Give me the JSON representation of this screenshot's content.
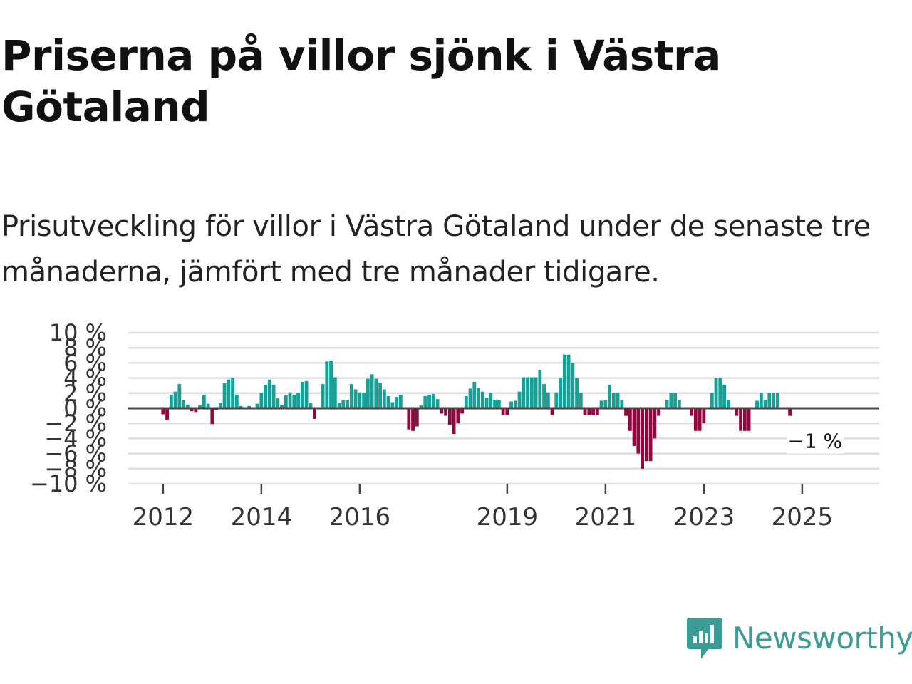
{
  "title": "Priserna på villor sjönk i Västra Götaland",
  "subtitle": "Prisutveckling för villor i Västra Götaland under de senaste tre månaderna, jämfört med tre månader tidigare.",
  "brand": {
    "name": "Newsworthy",
    "color": "#3a9c94"
  },
  "colors": {
    "positive": "#16a096",
    "negative": "#950641",
    "grid": "#dddddd",
    "zero": "#444444"
  },
  "chart_data": {
    "type": "bar",
    "title": "",
    "xlabel": "",
    "ylabel": "",
    "ylim": [
      -10,
      10
    ],
    "y_ticks": [
      10,
      8,
      6,
      4,
      2,
      0,
      -2,
      -4,
      -6,
      -8,
      -10
    ],
    "y_tick_labels": [
      "10 %",
      "8 %",
      "6 %",
      "4 %",
      "2 %",
      "0 %",
      "−2 %",
      "−4 %",
      "−6 %",
      "−8 %",
      "−10 %"
    ],
    "start": "2012-01",
    "x_tick_labels": [
      "2012",
      "2014",
      "2016",
      "2019",
      "2021",
      "2023",
      "2025"
    ],
    "x_tick_dates": [
      "2012-01",
      "2014-01",
      "2016-01",
      "2019-01",
      "2021-01",
      "2023-01",
      "2025-01"
    ],
    "last_label": "−1 %",
    "values": [
      -0.8,
      -1.5,
      1.8,
      2.2,
      3.2,
      1.1,
      0.5,
      -0.4,
      -0.5,
      0.4,
      1.8,
      0.6,
      -2.1,
      -0.2,
      0.7,
      3.3,
      3.8,
      4.0,
      1.8,
      0.3,
      0.1,
      0.3,
      0.1,
      0.6,
      2.0,
      3.1,
      3.8,
      3.1,
      1.3,
      0.4,
      1.7,
      2.1,
      1.8,
      2.0,
      3.5,
      3.6,
      0.7,
      -1.4,
      0.1,
      3.2,
      6.2,
      6.3,
      4.1,
      0.7,
      1.1,
      1.1,
      3.2,
      2.5,
      2.1,
      2.0,
      3.9,
      4.5,
      3.9,
      3.4,
      2.5,
      1.6,
      0.8,
      1.5,
      1.8,
      0.1,
      -2.8,
      -3.0,
      -2.4,
      0.4,
      1.6,
      1.8,
      1.9,
      1.2,
      -0.7,
      -1.0,
      -2.2,
      -3.4,
      -2.0,
      -0.7,
      1.6,
      2.6,
      3.5,
      2.7,
      2.2,
      1.4,
      2.0,
      1.1,
      1.1,
      -0.9,
      -0.9,
      0.9,
      1.0,
      2.2,
      4.1,
      4.1,
      4.1,
      4.1,
      5.1,
      3.2,
      2.1,
      -0.9,
      2.1,
      4.0,
      7.1,
      7.1,
      6.0,
      4.0,
      2.0,
      -0.9,
      -0.9,
      -0.9,
      -0.9,
      1.0,
      1.1,
      3.1,
      2.0,
      2.0,
      1.1,
      -1.0,
      -3.0,
      -5.0,
      -6.0,
      -8.0,
      -7.0,
      -7.0,
      -4.0,
      -1.0,
      0.0,
      1.1,
      2.0,
      2.0,
      1.1,
      0.0,
      0.0,
      -1.0,
      -3.0,
      -3.0,
      -2.0,
      0.0,
      2.0,
      4.0,
      4.0,
      3.1,
      1.1,
      0.0,
      -1.0,
      -3.0,
      -3.0,
      -3.0,
      0.0,
      1.0,
      2.0,
      1.1,
      2.0,
      2.0,
      2.0,
      0.0,
      0.0,
      -1.0
    ]
  }
}
